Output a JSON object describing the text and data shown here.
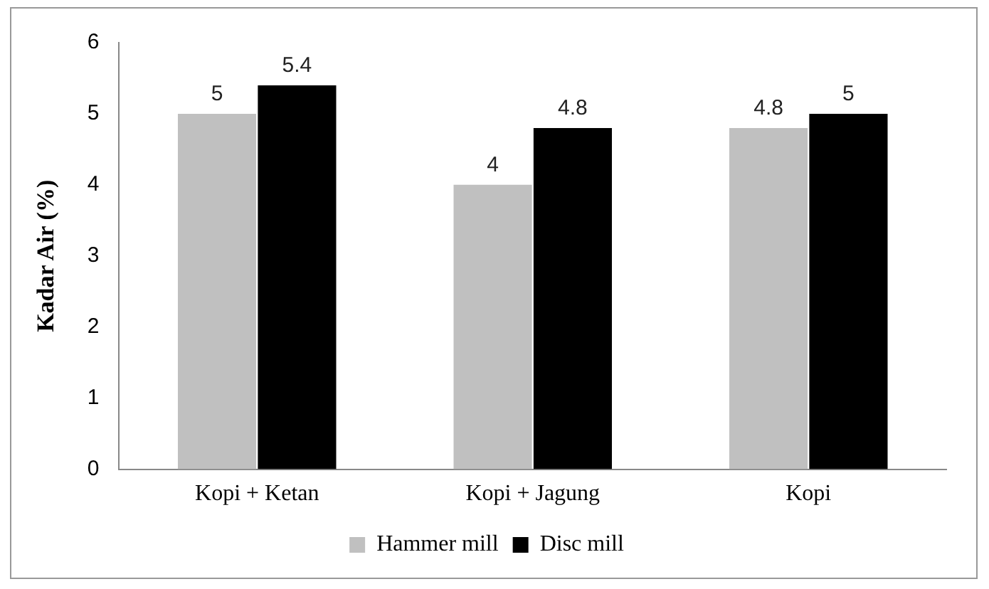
{
  "chart_data": {
    "type": "bar",
    "ylabel": "Kadar Air (%)",
    "categories": [
      "Kopi + Ketan",
      "Kopi + Jagung",
      "Kopi"
    ],
    "series": [
      {
        "name": "Hammer mill",
        "color": "#c0c0c0",
        "values": [
          5,
          4,
          4.8
        ]
      },
      {
        "name": "Disc mill",
        "color": "#000000",
        "values": [
          5.4,
          4.8,
          5
        ]
      }
    ],
    "ylim": [
      0,
      6
    ],
    "yticks": [
      0,
      1,
      2,
      3,
      4,
      5,
      6
    ],
    "grid": false,
    "legend": "bottom",
    "data_labels": true
  }
}
